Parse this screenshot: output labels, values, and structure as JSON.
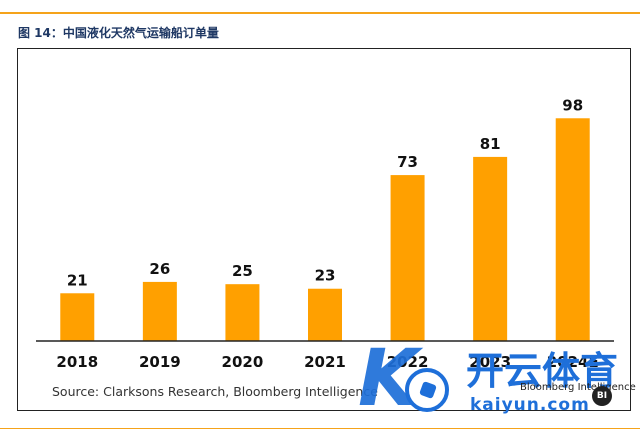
{
  "figure_title": "图 14：中国液化天然气运输船订单量",
  "source_note": "Source: Clarksons Research, Bloomberg Intelligence",
  "colors": {
    "bar": "#ffa000",
    "axis": "#222222",
    "accent_rule": "#f5a31a"
  },
  "chart_data": {
    "type": "bar",
    "title": "",
    "xlabel": "",
    "ylabel": "",
    "categories": [
      "2018",
      "2019",
      "2020",
      "2021",
      "2022",
      "2023",
      "2024E"
    ],
    "values": [
      21,
      26,
      25,
      23,
      73,
      81,
      98
    ],
    "ylim": [
      0,
      110
    ],
    "grid": false,
    "legend": "none",
    "data_labels": true
  },
  "watermark": {
    "symbol_text": "K",
    "brand_cn": "开云体育",
    "brand_latin": "kaiyun.com",
    "bloomberg_text": "Bloomberg Intelligence",
    "bloomberg_badge": "BI"
  }
}
